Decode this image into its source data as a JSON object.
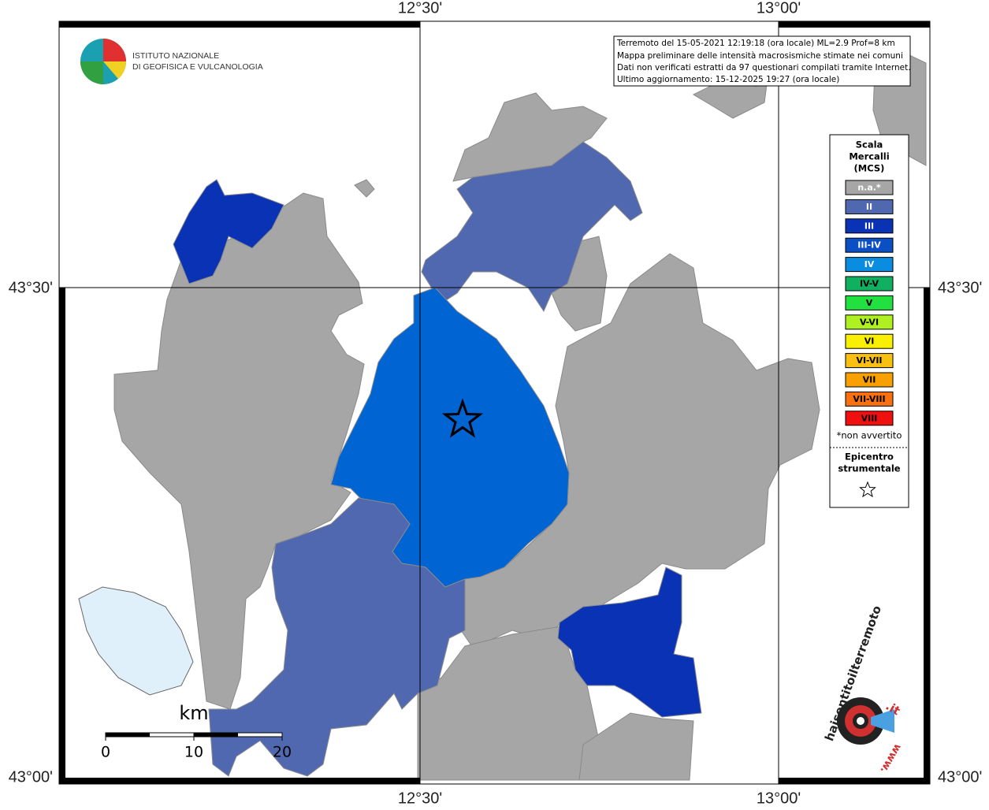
{
  "coordinates": {
    "top": [
      "12°30'",
      "13°00'"
    ],
    "left": [
      "43°30'",
      "43°00'"
    ]
  },
  "info_box": [
    "Terremoto del 15-05-2021 12:19:18 (ora locale) ML=2.9 Prof=8 km",
    "Mappa preliminare delle intensità macrosismiche stimate nei comuni",
    "Dati non verificati estratti da 97 questionari compilati tramite Internet.",
    "Ultimo aggiornamento: 15-12-2025 19:27 (ora locale)"
  ],
  "logo": [
    "ISTITUTO NAZIONALE",
    "DI GEOFISICA E VULCANOLOGIA"
  ],
  "legend": {
    "title": [
      "Scala",
      "Mercalli",
      "(MCS)"
    ],
    "entries": [
      {
        "label": "n.a.*",
        "color": "#a6a6a6"
      },
      {
        "label": "II",
        "color": "#5068b0"
      },
      {
        "label": "III",
        "color": "#0a32b4"
      },
      {
        "label": "III-IV",
        "color": "#0a4fc4"
      },
      {
        "label": "IV",
        "color": "#0a8ce0"
      },
      {
        "label": "IV-V",
        "color": "#10b060"
      },
      {
        "label": "V",
        "color": "#22e040"
      },
      {
        "label": "V-VI",
        "color": "#aef020"
      },
      {
        "label": "VI",
        "color": "#f8f000"
      },
      {
        "label": "VI-VII",
        "color": "#f8c010"
      },
      {
        "label": "VII",
        "color": "#f8a000"
      },
      {
        "label": "VII-VIII",
        "color": "#f87010"
      },
      {
        "label": "VIII",
        "color": "#f01010"
      }
    ],
    "note": "*non avvertito",
    "epicenter": [
      "Epicentro",
      "strumentale"
    ]
  },
  "scale_bar": {
    "unit": "km",
    "labels": [
      "0",
      "10",
      "20"
    ]
  },
  "site_logo": [
    "haisentitoilterremoto",
    ".it",
    "www."
  ]
}
